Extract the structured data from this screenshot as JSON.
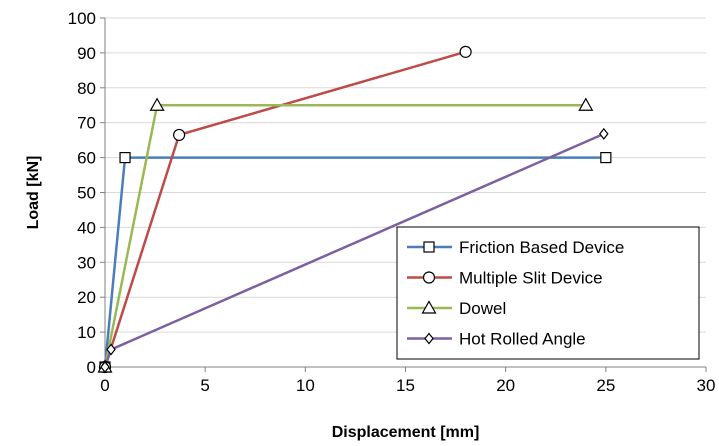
{
  "chart_data": {
    "type": "line",
    "title": "",
    "xlabel": "Displacement [mm]",
    "ylabel": "Load [kN]",
    "xlim": [
      0,
      30
    ],
    "ylim": [
      0,
      100
    ],
    "xticks": [
      "0",
      "5",
      "10",
      "15",
      "20",
      "25",
      "30"
    ],
    "yticks": [
      "0",
      "10",
      "20",
      "30",
      "40",
      "50",
      "60",
      "70",
      "80",
      "90",
      "100"
    ],
    "grid": "horizontal",
    "legend_position": "bottom-right",
    "series": [
      {
        "name": "Friction Based Device",
        "color": "#4a7ebb",
        "marker": "square",
        "x": [
          0,
          1,
          25
        ],
        "y": [
          0,
          60,
          60
        ]
      },
      {
        "name": "Multiple Slit Device",
        "color": "#be4b48",
        "marker": "circle",
        "x": [
          0,
          3.7,
          18
        ],
        "y": [
          0,
          66.5,
          90.3
        ]
      },
      {
        "name": "Dowel",
        "color": "#98b954",
        "marker": "triangle",
        "x": [
          0,
          2.6,
          24
        ],
        "y": [
          0,
          75,
          75
        ]
      },
      {
        "name": "Hot Rolled Angle",
        "color": "#7d60a0",
        "marker": "diamond",
        "x": [
          0,
          0.3,
          24.9
        ],
        "y": [
          0,
          5,
          66.8
        ]
      }
    ]
  }
}
